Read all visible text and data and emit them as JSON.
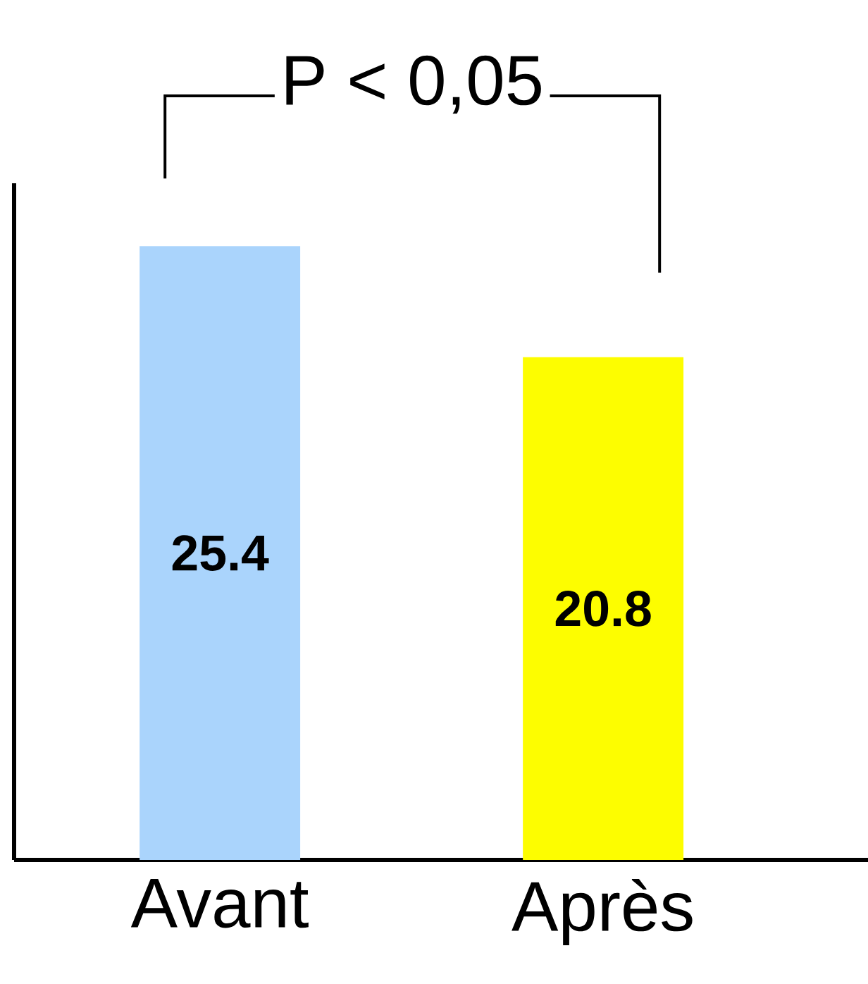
{
  "chart_data": {
    "type": "bar",
    "categories": [
      "Avant",
      "Après"
    ],
    "values": [
      25.4,
      20.8
    ],
    "colors": [
      "#aad4fc",
      "#fdfd00"
    ],
    "ylim": [
      0,
      28
    ],
    "data_labels": true,
    "tick_labels": "x",
    "annotations": [
      "P < 0,05"
    ]
  }
}
